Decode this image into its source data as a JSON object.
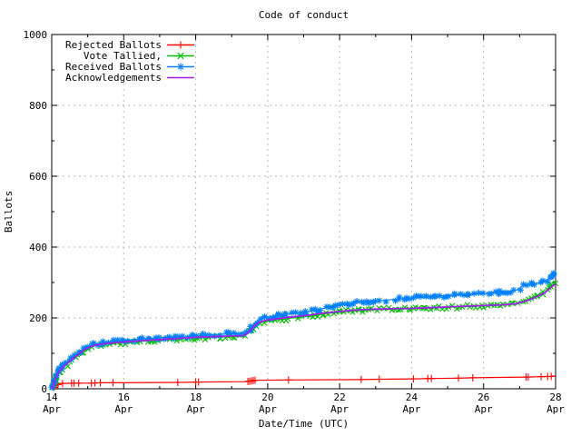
{
  "chart_data": {
    "type": "line",
    "title": "Code of conduct",
    "xlabel": "Date/Time (UTC)",
    "ylabel": "Ballots",
    "x_unit": "day of April (UTC)",
    "xlim": [
      14,
      28
    ],
    "ylim": [
      0,
      1000
    ],
    "grid": true,
    "legend_position": "top-left-inside",
    "grid_color": "#b8b8b8",
    "x_ticks": [
      {
        "day": 14,
        "line1": "14",
        "line2": "Apr"
      },
      {
        "day": 16,
        "line1": "16",
        "line2": "Apr"
      },
      {
        "day": 18,
        "line1": "18",
        "line2": "Apr"
      },
      {
        "day": 20,
        "line1": "20",
        "line2": "Apr"
      },
      {
        "day": 22,
        "line1": "22",
        "line2": "Apr"
      },
      {
        "day": 24,
        "line1": "24",
        "line2": "Apr"
      },
      {
        "day": 26,
        "line1": "26",
        "line2": "Apr"
      },
      {
        "day": 28,
        "line1": "28",
        "line2": "Apr"
      }
    ],
    "y_ticks": [
      0,
      200,
      400,
      600,
      800,
      1000
    ],
    "series": [
      {
        "name": "Rejected Ballots",
        "color": "#ff0000",
        "marker": "plus",
        "line_width": 1.2,
        "points": [
          [
            14.0,
            0
          ],
          [
            14.08,
            6
          ],
          [
            14.15,
            11
          ],
          [
            14.3,
            15
          ],
          [
            14.75,
            16
          ],
          [
            15.1,
            16
          ],
          [
            15.35,
            17
          ],
          [
            15.7,
            17
          ],
          [
            17.5,
            18
          ],
          [
            18.08,
            19
          ],
          [
            19.4,
            20
          ],
          [
            19.55,
            22
          ],
          [
            19.65,
            24
          ],
          [
            20.58,
            25
          ],
          [
            22.6,
            26
          ],
          [
            23.1,
            27
          ],
          [
            24.05,
            28
          ],
          [
            24.55,
            29
          ],
          [
            25.3,
            30
          ],
          [
            25.7,
            31
          ],
          [
            27.2,
            33
          ],
          [
            27.6,
            34
          ],
          [
            27.88,
            35
          ],
          [
            28.0,
            36
          ]
        ],
        "marker_days": [
          14.05,
          14.1,
          14.17,
          14.3,
          14.55,
          14.62,
          14.75,
          15.1,
          15.2,
          15.35,
          15.7,
          17.5,
          18.0,
          18.08,
          19.45,
          19.5,
          19.55,
          19.6,
          19.65,
          20.58,
          22.6,
          23.1,
          24.05,
          24.45,
          24.55,
          25.3,
          25.7,
          27.18,
          27.24,
          27.6,
          27.78,
          27.88
        ]
      },
      {
        "name": "Vote Tallied,",
        "color": "#00c000",
        "marker": "cross",
        "line_width": 1.2,
        "points": [
          [
            14.0,
            0
          ],
          [
            14.05,
            10
          ],
          [
            14.1,
            26
          ],
          [
            14.2,
            46
          ],
          [
            14.3,
            58
          ],
          [
            14.4,
            67
          ],
          [
            14.5,
            76
          ],
          [
            14.6,
            84
          ],
          [
            14.7,
            92
          ],
          [
            14.85,
            104
          ],
          [
            15.0,
            113
          ],
          [
            15.2,
            121
          ],
          [
            15.5,
            126
          ],
          [
            16.0,
            130
          ],
          [
            16.5,
            134
          ],
          [
            17.0,
            137
          ],
          [
            17.5,
            140
          ],
          [
            18.0,
            143
          ],
          [
            18.5,
            145
          ],
          [
            19.0,
            147
          ],
          [
            19.35,
            148
          ],
          [
            19.45,
            156
          ],
          [
            19.6,
            170
          ],
          [
            19.75,
            184
          ],
          [
            19.9,
            189
          ],
          [
            20.0,
            191
          ],
          [
            20.3,
            195
          ],
          [
            20.6,
            199
          ],
          [
            21.0,
            203
          ],
          [
            21.3,
            207
          ],
          [
            21.6,
            212
          ],
          [
            22.0,
            216
          ],
          [
            22.3,
            219
          ],
          [
            22.6,
            221
          ],
          [
            23.0,
            223
          ],
          [
            23.5,
            224
          ],
          [
            24.0,
            226
          ],
          [
            24.5,
            228
          ],
          [
            25.0,
            230
          ],
          [
            25.5,
            232
          ],
          [
            26.0,
            234
          ],
          [
            26.5,
            237
          ],
          [
            26.9,
            241
          ],
          [
            27.1,
            248
          ],
          [
            27.3,
            254
          ],
          [
            27.5,
            263
          ],
          [
            27.7,
            273
          ],
          [
            27.85,
            287
          ],
          [
            28.0,
            303
          ]
        ]
      },
      {
        "name": "Received Ballots",
        "color": "#0080ff",
        "marker": "star",
        "line_width": 1.2,
        "points": [
          [
            14.0,
            0
          ],
          [
            14.05,
            15
          ],
          [
            14.1,
            32
          ],
          [
            14.2,
            52
          ],
          [
            14.3,
            64
          ],
          [
            14.4,
            73
          ],
          [
            14.5,
            82
          ],
          [
            14.6,
            90
          ],
          [
            14.7,
            98
          ],
          [
            14.85,
            110
          ],
          [
            15.0,
            119
          ],
          [
            15.2,
            126
          ],
          [
            15.5,
            131
          ],
          [
            16.0,
            136
          ],
          [
            16.5,
            141
          ],
          [
            17.0,
            144
          ],
          [
            17.5,
            147
          ],
          [
            18.0,
            150
          ],
          [
            18.5,
            153
          ],
          [
            19.0,
            155
          ],
          [
            19.35,
            156
          ],
          [
            19.45,
            164
          ],
          [
            19.6,
            180
          ],
          [
            19.75,
            194
          ],
          [
            19.9,
            200
          ],
          [
            20.0,
            202
          ],
          [
            20.3,
            207
          ],
          [
            20.6,
            211
          ],
          [
            21.0,
            215
          ],
          [
            21.3,
            221
          ],
          [
            21.6,
            228
          ],
          [
            22.0,
            236
          ],
          [
            22.3,
            241
          ],
          [
            22.6,
            245
          ],
          [
            23.0,
            248
          ],
          [
            23.5,
            252
          ],
          [
            24.0,
            256
          ],
          [
            24.5,
            260
          ],
          [
            25.0,
            263
          ],
          [
            25.5,
            266
          ],
          [
            26.0,
            269
          ],
          [
            26.5,
            272
          ],
          [
            26.9,
            278
          ],
          [
            27.1,
            291
          ],
          [
            27.3,
            295
          ],
          [
            27.5,
            298
          ],
          [
            27.7,
            304
          ],
          [
            27.85,
            314
          ],
          [
            28.0,
            330
          ]
        ]
      },
      {
        "name": "Acknowledgements",
        "color": "#a020f0",
        "marker": "none",
        "line_width": 1.8,
        "points": [
          [
            14.0,
            0
          ],
          [
            14.05,
            12
          ],
          [
            14.1,
            28
          ],
          [
            14.2,
            48
          ],
          [
            14.3,
            60
          ],
          [
            14.4,
            69
          ],
          [
            14.5,
            78
          ],
          [
            14.6,
            86
          ],
          [
            14.7,
            94
          ],
          [
            14.85,
            106
          ],
          [
            15.0,
            116
          ],
          [
            15.2,
            123
          ],
          [
            15.5,
            128
          ],
          [
            16.0,
            132
          ],
          [
            16.5,
            136
          ],
          [
            17.0,
            139
          ],
          [
            17.5,
            142
          ],
          [
            18.0,
            145
          ],
          [
            18.5,
            147
          ],
          [
            19.0,
            149
          ],
          [
            19.35,
            150
          ],
          [
            19.45,
            159
          ],
          [
            19.6,
            174
          ],
          [
            19.75,
            187
          ],
          [
            19.9,
            192
          ],
          [
            20.0,
            194
          ],
          [
            20.3,
            198
          ],
          [
            20.6,
            202
          ],
          [
            21.0,
            206
          ],
          [
            21.3,
            210
          ],
          [
            21.6,
            214
          ],
          [
            22.0,
            218
          ],
          [
            22.3,
            221
          ],
          [
            22.6,
            223
          ],
          [
            23.0,
            225
          ],
          [
            23.5,
            226
          ],
          [
            24.0,
            227
          ],
          [
            24.5,
            229
          ],
          [
            25.0,
            231
          ],
          [
            25.5,
            233
          ],
          [
            26.0,
            235
          ],
          [
            26.5,
            237
          ],
          [
            26.9,
            240
          ],
          [
            27.1,
            246
          ],
          [
            27.3,
            252
          ],
          [
            27.5,
            261
          ],
          [
            27.7,
            271
          ],
          [
            27.85,
            284
          ],
          [
            28.0,
            297
          ]
        ]
      }
    ]
  }
}
